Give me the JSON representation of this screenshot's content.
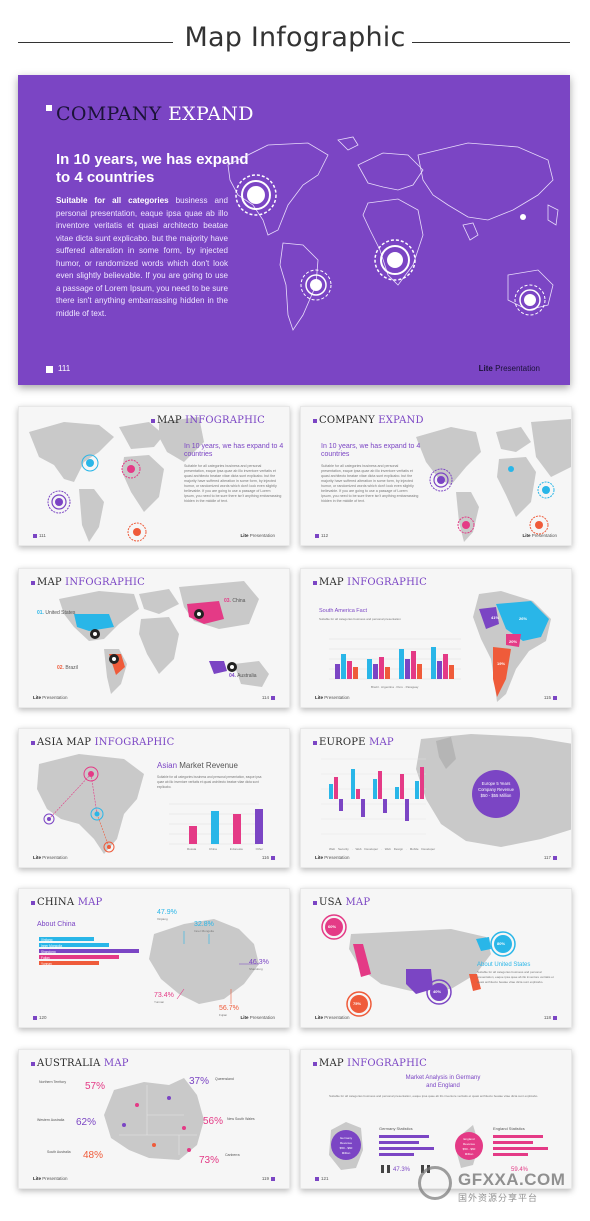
{
  "header": {
    "title": "Map Infographic"
  },
  "hero": {
    "title_a": "COMPANY",
    "title_b": "EXPAND",
    "headline": "In 10 years, we has expand to 4 countries",
    "body_bold": "Suitable for all categories",
    "body": " business and personal presentation, eaque ipsa quae ab illo inventore veritatis et quasi architecto beatae vitae dicta sunt explicabo. but the majority have suffered alteration in some form, by injected humor, or randomized words which don't look even slightly believable. If you are going to use a passage of Lorem Ipsum, you need to be sure there isn't anything embarrassing hidden in the middle of text.",
    "page": "111",
    "brand_bold": "Lite",
    "brand": " Presentation",
    "colors": {
      "bg": "#7b45c4",
      "accent": "#ffffff"
    }
  },
  "cards": [
    {
      "title_a": "MAP ",
      "title_b": "INFOGRAPHIC",
      "headline": "In 10 years, we has expand to 4 countries",
      "page": "111",
      "brand_bold": "Lite",
      "brand": " Presentation",
      "text": "Suitable for all categories business and personal presentation, eaque ipsa quae ab illo inventore veritatis et quasi architecto beatae vitae dicta sunt explicabo. but the majority have suffered alteration in some form, by injected humor, or randomized words which don't look even slightly believable. If you are going to use a passage of Lorem Ipsum, you need to be sure there isn't anything embarrassing hidden in the middle of text."
    },
    {
      "title_a": "COMPANY ",
      "title_b": "EXPAND",
      "headline": "In 10 years, we has expand to 4 countries",
      "page": "112",
      "brand_bold": "Lite",
      "brand": " Presentation",
      "text": "Suitable for all categories business and personal presentation, eaque ipsa quae ab illo inventore veritatis et quasi architecto beatae vitae dicta sunt explicabo. but the majority have suffered alteration in some form, by injected humor, or randomized words which don't look even slightly believable. If you are going to use a passage of Lorem Ipsum, you need to be sure there isn't anything embarrassing hidden in the middle of text."
    },
    {
      "title_a": "MAP ",
      "title_b": "INFOGRAPHIC",
      "page": "114",
      "brand_bold": "Lite",
      "brand": " Presentation",
      "labels": [
        {
          "n": "01.",
          "t": "United States"
        },
        {
          "n": "02.",
          "t": "Brazil"
        },
        {
          "n": "03.",
          "t": "China"
        },
        {
          "n": "04.",
          "t": "Australia"
        }
      ]
    },
    {
      "title_a": "MAP ",
      "title_b": "INFOGRAPHIC",
      "page": "115",
      "brand_bold": "Lite",
      "brand": " Presentation",
      "sub": "South America Fact",
      "legend": [
        "Brazil",
        "Argentina",
        "Peru",
        "Paraguay"
      ],
      "pct": [
        "41%",
        "26%",
        "20%",
        "19%"
      ]
    },
    {
      "title_a": "ASIA MAP ",
      "title_b": "INFOGRAPHIC",
      "page": "116",
      "brand_bold": "Lite",
      "brand": " Presentation",
      "sub_a": "Asian",
      "sub_b": " Market Revenue",
      "cats": [
        "Russia",
        "China",
        "Indonesia",
        "Other"
      ]
    },
    {
      "title_a": "EUROPE ",
      "title_b": "MAP",
      "page": "117",
      "brand_bold": "Lite",
      "brand": " Presentation",
      "badge": [
        "Europe 5 Years",
        "Company Revenue",
        "$50 - $55 Million"
      ],
      "legend": [
        "Web Security",
        "Web Developer",
        "Web Design",
        "Mobile Developer"
      ]
    },
    {
      "title_a": "CHINA ",
      "title_b": "MAP",
      "page": "120",
      "brand_bold": "Lite",
      "brand": " Presentation",
      "sub": "About China",
      "bars": [
        "Xinjiang",
        "Inner Mongolia",
        "Shandong",
        "Fujian",
        "Yunnan"
      ],
      "stats": [
        {
          "v": "47.9%",
          "l": "Xinjiang"
        },
        {
          "v": "32.8%",
          "l": "Inner Mongolia"
        },
        {
          "v": "46.3%",
          "l": "Shandong"
        },
        {
          "v": "73.4%",
          "l": "Yunnan"
        },
        {
          "v": "56.7%",
          "l": "Fujian"
        }
      ]
    },
    {
      "title_a": "USA ",
      "title_b": "MAP",
      "page": "118",
      "brand_bold": "Lite",
      "brand": " Presentation",
      "sub": "About United States",
      "pct": [
        "60%",
        "80%",
        "75%",
        "40%"
      ]
    },
    {
      "title_a": "AUSTRALIA ",
      "title_b": "MAP",
      "page": "119",
      "brand_bold": "Lite",
      "brand": " Presentation",
      "regions": [
        {
          "v": "57%",
          "l": "Northern Territory"
        },
        {
          "v": "37%",
          "l": "Queensland"
        },
        {
          "v": "62%",
          "l": "Western Australia"
        },
        {
          "v": "56%",
          "l": "New South Wales"
        },
        {
          "v": "48%",
          "l": "South Australia"
        },
        {
          "v": "73%",
          "l": "Canberra"
        }
      ]
    },
    {
      "title_a": "MAP ",
      "title_b": "INFOGRAPHIC",
      "page": "121",
      "brand_bold": "Lite",
      "brand": " Presentation",
      "sub_a": "Market Analysis in Germany",
      "sub_b": "and England",
      "g_title": "Germany Statistics",
      "e_title": "England Statistics",
      "g_badge": [
        "Germany",
        "Revenue",
        "$50 - $60",
        "Million"
      ],
      "e_badge": [
        "England",
        "Revenue",
        "$50 - $60",
        "Million"
      ],
      "g_pct": "47.3%",
      "e_pct": "59.4%"
    }
  ],
  "watermark": {
    "name": "GFXXA.COM",
    "cn": "国外资源分享平台"
  }
}
